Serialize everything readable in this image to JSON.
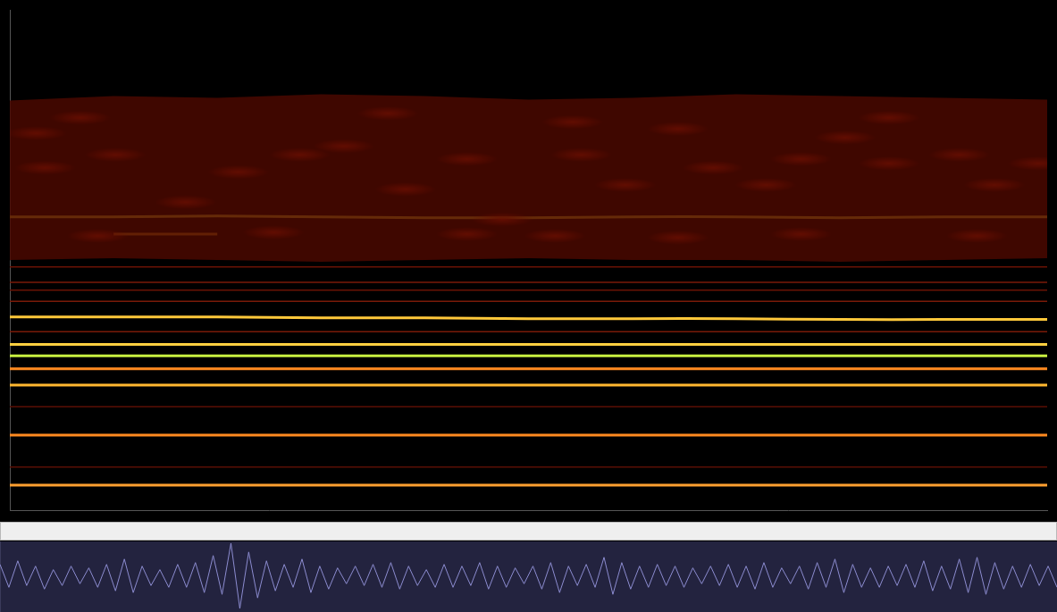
{
  "chart_data": [
    {
      "type": "spectrogram",
      "xlim": [
        0,
        1180
      ],
      "ylim": [
        0,
        580
      ],
      "tick_labels": false,
      "grid": false,
      "x": [
        0,
        118,
        236,
        354,
        472,
        590,
        708,
        826,
        944,
        1062,
        1180
      ],
      "band": {
        "color": "#4a0800",
        "low": [
          290,
          292,
          290,
          288,
          290,
          292,
          290,
          290,
          288,
          290,
          292
        ],
        "high": [
          475,
          480,
          478,
          482,
          480,
          476,
          478,
          482,
          480,
          478,
          476
        ]
      },
      "series": [
        {
          "color": "#6a1205",
          "line_style": "faint",
          "values": [
            282,
            282,
            282,
            282,
            282,
            282,
            282,
            282,
            282,
            282,
            282
          ]
        },
        {
          "color": "#7a1a08",
          "line_style": "faint",
          "values": [
            264,
            264,
            264,
            264,
            264,
            264,
            264,
            264,
            264,
            264,
            264
          ]
        },
        {
          "color": "#6a1205",
          "line_style": "faint",
          "values": [
            255,
            255,
            255,
            255,
            255,
            255,
            255,
            255,
            255,
            255,
            255
          ]
        },
        {
          "color": "#7a1a08",
          "line_style": "faint",
          "values": [
            242,
            242,
            242,
            242,
            242,
            242,
            242,
            242,
            242,
            242,
            242
          ]
        },
        {
          "color": "#7a1a08",
          "line_style": "faint",
          "values": [
            207,
            207,
            207,
            207,
            207,
            207,
            207,
            207,
            207,
            207,
            207
          ]
        },
        {
          "color": "#5a0e04",
          "line_style": "faint",
          "values": [
            120,
            120,
            120,
            120,
            120,
            120,
            120,
            120,
            120,
            120,
            120
          ]
        },
        {
          "color": "#5a0e04",
          "line_style": "faint",
          "values": [
            50,
            50,
            50,
            50,
            50,
            50,
            50,
            50,
            50,
            50,
            50
          ]
        },
        {
          "color": "#ffe83a",
          "line_style": "glow",
          "values": [
            340,
            340,
            341,
            340,
            339,
            339,
            340,
            340,
            339,
            340,
            340
          ]
        },
        {
          "color": "#e8a020",
          "line_style": "glow",
          "values": [
            null,
            320,
            320,
            null,
            null,
            null,
            null,
            null,
            null,
            null,
            null
          ]
        },
        {
          "color": "#ffc83a",
          "line_style": "glow",
          "values": [
            224,
            224,
            224,
            223,
            223,
            222,
            222,
            222,
            221,
            221,
            221
          ]
        },
        {
          "color": "#ffd040",
          "line_style": "glow",
          "values": [
            192,
            192,
            192,
            192,
            192,
            192,
            192,
            192,
            192,
            192,
            192
          ]
        },
        {
          "color": "#c8f040",
          "line_style": "glow",
          "values": [
            179,
            179,
            179,
            179,
            179,
            179,
            179,
            179,
            179,
            179,
            179
          ]
        },
        {
          "color": "#ff8a20",
          "line_style": "glow",
          "values": [
            164,
            164,
            164,
            164,
            164,
            164,
            164,
            164,
            164,
            164,
            164
          ]
        },
        {
          "color": "#ffb830",
          "line_style": "glow",
          "values": [
            145,
            145,
            145,
            145,
            145,
            145,
            145,
            145,
            145,
            145,
            145
          ]
        },
        {
          "color": "#ff8a20",
          "line_style": "glow",
          "values": [
            87,
            87,
            87,
            87,
            87,
            87,
            87,
            87,
            87,
            87,
            87
          ]
        },
        {
          "color": "#ffa030",
          "line_style": "glow",
          "values": [
            29,
            29,
            29,
            29,
            29,
            29,
            29,
            29,
            29,
            29,
            29
          ]
        }
      ],
      "blobs": {
        "color": "#ff3010",
        "x": [
          30,
          40,
          120,
          200,
          260,
          330,
          380,
          450,
          520,
          560,
          650,
          700,
          760,
          800,
          860,
          900,
          950,
          1000,
          1080,
          1120,
          1170,
          100,
          300,
          520,
          620,
          760,
          900,
          1100,
          80,
          430,
          640,
          1000
        ],
        "y": [
          437,
          397,
          412,
          357,
          392,
          412,
          422,
          372,
          407,
          337,
          412,
          377,
          442,
          397,
          377,
          407,
          432,
          402,
          412,
          377,
          402,
          318,
          322,
          320,
          318,
          316,
          320,
          318,
          455,
          460,
          450,
          455
        ]
      }
    },
    {
      "type": "waveform",
      "xlim": [
        0,
        119
      ],
      "ylim": [
        -1,
        1
      ],
      "tick_labels": false,
      "grid": false,
      "color": "#8c8cd0",
      "values": [
        0.35,
        -0.3,
        0.45,
        -0.25,
        0.3,
        -0.35,
        0.2,
        -0.25,
        0.3,
        -0.2,
        0.25,
        -0.3,
        0.35,
        -0.4,
        0.5,
        -0.45,
        0.3,
        -0.25,
        0.2,
        -0.3,
        0.35,
        -0.3,
        0.4,
        -0.45,
        0.6,
        -0.5,
        0.95,
        -0.9,
        0.7,
        -0.6,
        0.45,
        -0.4,
        0.35,
        -0.3,
        0.5,
        -0.45,
        0.3,
        -0.35,
        0.25,
        -0.2,
        0.3,
        -0.25,
        0.35,
        -0.3,
        0.4,
        -0.35,
        0.3,
        -0.25,
        0.2,
        -0.3,
        0.35,
        -0.3,
        0.3,
        -0.25,
        0.4,
        -0.35,
        0.3,
        -0.3,
        0.25,
        -0.2,
        0.3,
        -0.35,
        0.4,
        -0.45,
        0.3,
        -0.25,
        0.35,
        -0.3,
        0.55,
        -0.5,
        0.4,
        -0.35,
        0.3,
        -0.3,
        0.35,
        -0.25,
        0.3,
        -0.3,
        0.25,
        -0.2,
        0.3,
        -0.25,
        0.35,
        -0.3,
        0.3,
        -0.35,
        0.4,
        -0.3,
        0.25,
        -0.2,
        0.3,
        -0.35,
        0.4,
        -0.3,
        0.5,
        -0.45,
        0.35,
        -0.3,
        0.25,
        -0.3,
        0.3,
        -0.25,
        0.35,
        -0.3,
        0.45,
        -0.4,
        0.3,
        -0.35,
        0.5,
        -0.45,
        0.55,
        -0.5,
        0.4,
        -0.35,
        0.3,
        -0.3,
        0.35,
        -0.25,
        0.3,
        -0.3
      ]
    }
  ]
}
